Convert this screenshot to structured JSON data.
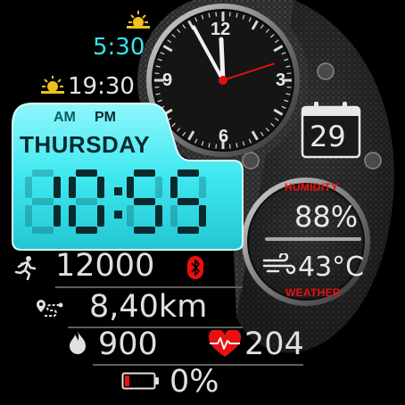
{
  "sunrise": {
    "icon": "sunrise-icon",
    "time": "5:30"
  },
  "sunset": {
    "icon": "sunset-icon",
    "time": "19:30"
  },
  "lcd": {
    "am_label": "AM",
    "pm_label": "PM",
    "day": "THURSDAY",
    "time": "10:55",
    "background_color": "#3fe8f0"
  },
  "analog_clock": {
    "numerals": {
      "twelve": "12",
      "three": "3",
      "six": "6",
      "nine": "9"
    },
    "hour": 11,
    "minute": 55,
    "second": 12
  },
  "calendar": {
    "icon": "calendar-icon",
    "date": "29"
  },
  "weather": {
    "humidity_label": "HUMIDITY",
    "humidity": "88%",
    "temperature": "43°C",
    "weather_label": "WEATHER",
    "icon": "wind-icon"
  },
  "stats": {
    "steps": {
      "icon": "running-icon",
      "value": "12000"
    },
    "bluetooth_icon": "bluetooth-icon",
    "distance": {
      "icon": "route-icon",
      "value": "8,40km"
    },
    "calories": {
      "icon": "flame-icon",
      "value": "900"
    },
    "heart_rate": {
      "icon": "heart-rate-icon",
      "value": "204"
    },
    "battery": {
      "icon": "battery-icon",
      "value": "0%",
      "level": 0
    }
  },
  "colors": {
    "accent_cyan": "#3fe8f0",
    "alert_red": "#e81010",
    "hand_red": "#e01010"
  }
}
